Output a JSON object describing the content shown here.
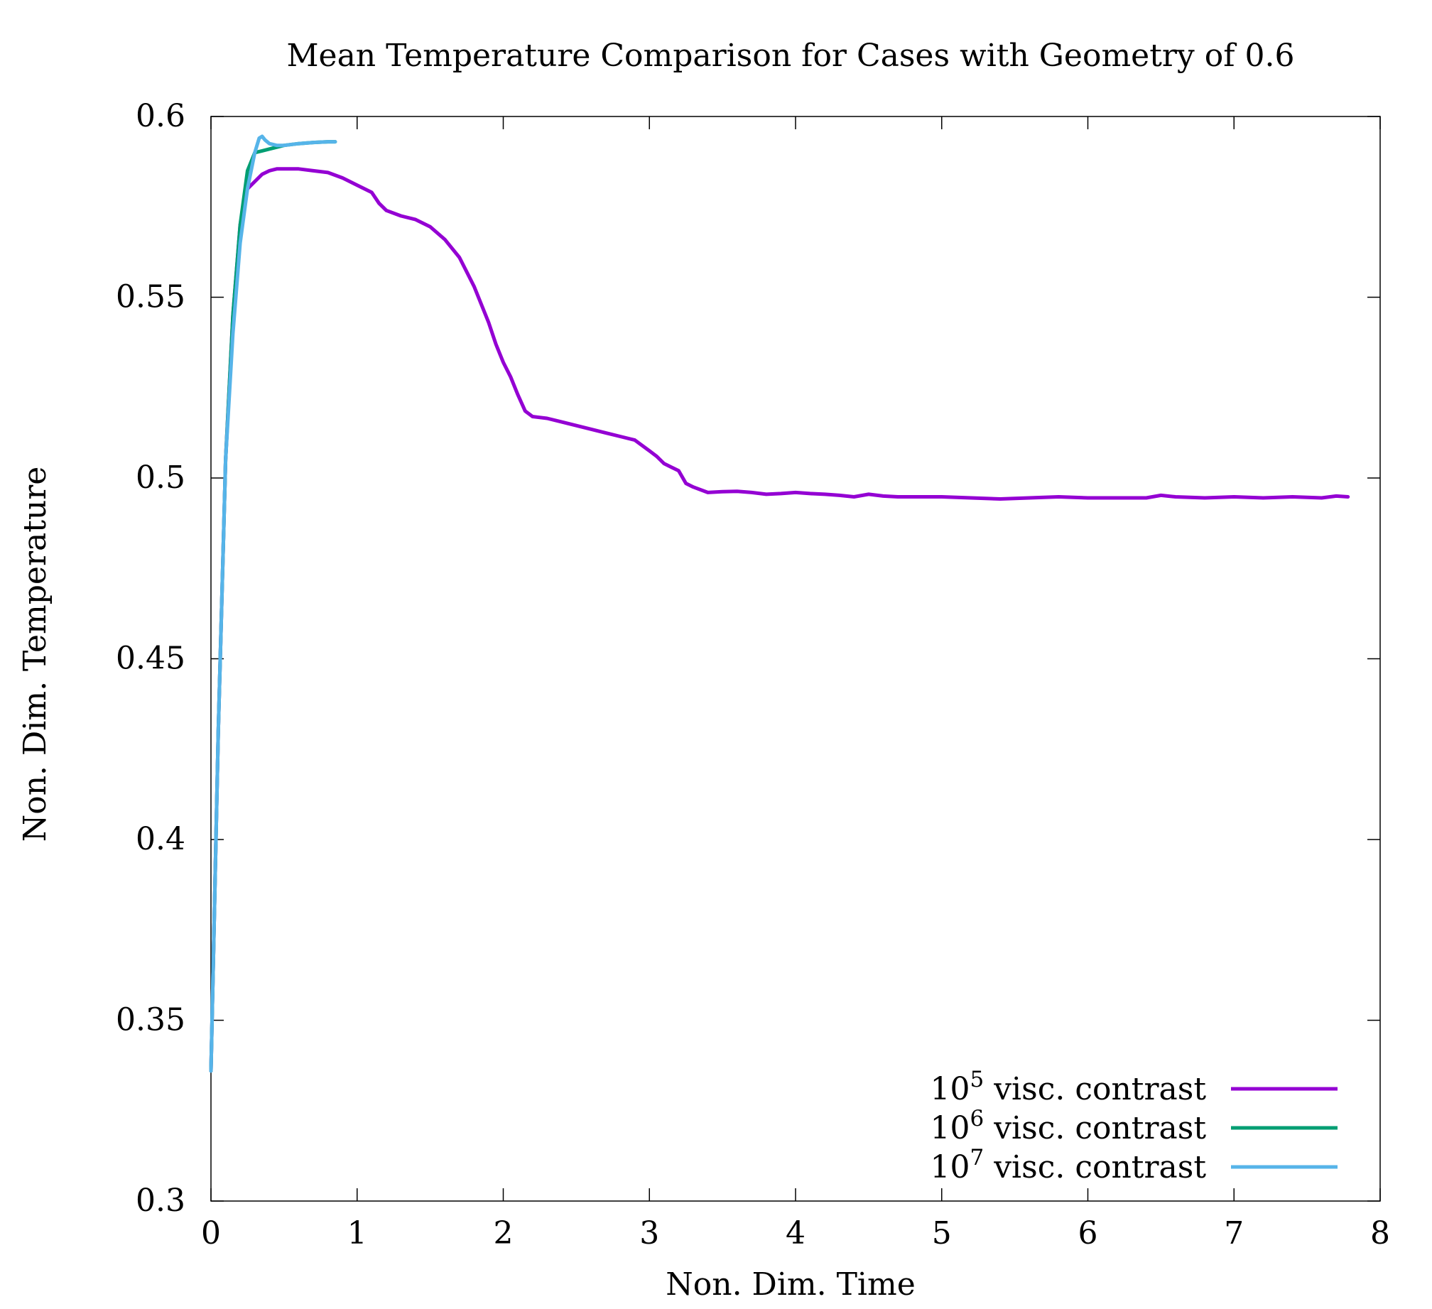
{
  "chart_data": {
    "type": "line",
    "title": "Mean Temperature Comparison for Cases with Geometry of 0.6",
    "xlabel": "Non. Dim. Time",
    "ylabel": "Non. Dim. Temperature",
    "xlim": [
      0,
      8
    ],
    "ylim": [
      0.3,
      0.6
    ],
    "xticks": [
      0,
      1,
      2,
      3,
      4,
      5,
      6,
      7,
      8
    ],
    "xtick_labels": [
      "0",
      "1",
      "2",
      "3",
      "4",
      "5",
      "6",
      "7",
      "8"
    ],
    "yticks": [
      0.3,
      0.35,
      0.4,
      0.45,
      0.5,
      0.55,
      0.6
    ],
    "ytick_labels": [
      "0.3",
      "0.35",
      "0.4",
      "0.45",
      "0.5",
      "0.55",
      "0.6"
    ],
    "grid": false,
    "legend_position": "bottom-right",
    "series": [
      {
        "name": "visc. contrast",
        "legend_base": "10",
        "legend_exp": "5",
        "color": "#9400D3",
        "x": [
          0,
          0.05,
          0.1,
          0.15,
          0.2,
          0.25,
          0.3,
          0.35,
          0.4,
          0.45,
          0.5,
          0.6,
          0.7,
          0.8,
          0.9,
          1.0,
          1.1,
          1.15,
          1.2,
          1.3,
          1.4,
          1.5,
          1.6,
          1.7,
          1.8,
          1.9,
          1.95,
          2.0,
          2.05,
          2.1,
          2.15,
          2.2,
          2.3,
          2.4,
          2.5,
          2.6,
          2.7,
          2.8,
          2.9,
          3.0,
          3.05,
          3.1,
          3.15,
          3.2,
          3.25,
          3.3,
          3.4,
          3.5,
          3.6,
          3.7,
          3.8,
          3.9,
          4.0,
          4.1,
          4.2,
          4.3,
          4.4,
          4.5,
          4.6,
          4.7,
          4.8,
          4.9,
          5.0,
          5.2,
          5.4,
          5.6,
          5.8,
          6.0,
          6.2,
          6.4,
          6.5,
          6.6,
          6.8,
          7.0,
          7.2,
          7.4,
          7.6,
          7.7,
          7.78
        ],
        "y": [
          0.336,
          0.43,
          0.505,
          0.545,
          0.57,
          0.58,
          0.582,
          0.584,
          0.585,
          0.5855,
          0.5855,
          0.5855,
          0.585,
          0.5845,
          0.583,
          0.581,
          0.579,
          0.576,
          0.574,
          0.5725,
          0.5715,
          0.5695,
          0.566,
          0.561,
          0.553,
          0.543,
          0.537,
          0.532,
          0.528,
          0.523,
          0.5185,
          0.517,
          0.5165,
          0.5155,
          0.5145,
          0.5135,
          0.5125,
          0.5115,
          0.5105,
          0.5075,
          0.506,
          0.504,
          0.503,
          0.502,
          0.4985,
          0.4975,
          0.496,
          0.4962,
          0.4963,
          0.496,
          0.4955,
          0.4957,
          0.496,
          0.4957,
          0.4955,
          0.4952,
          0.4948,
          0.4955,
          0.495,
          0.4948,
          0.4948,
          0.4948,
          0.4948,
          0.4945,
          0.4942,
          0.4945,
          0.4948,
          0.4945,
          0.4945,
          0.4945,
          0.4952,
          0.4948,
          0.4945,
          0.4948,
          0.4945,
          0.4948,
          0.4945,
          0.495,
          0.4948
        ]
      },
      {
        "name": "visc. contrast",
        "legend_base": "10",
        "legend_exp": "6",
        "color": "#009E73",
        "x": [
          0,
          0.05,
          0.1,
          0.15,
          0.2,
          0.25,
          0.3,
          0.35,
          0.4,
          0.5,
          0.6,
          0.7,
          0.8,
          0.85
        ],
        "y": [
          0.336,
          0.43,
          0.505,
          0.545,
          0.57,
          0.585,
          0.59,
          0.5905,
          0.591,
          0.592,
          0.5925,
          0.5928,
          0.593,
          0.593
        ]
      },
      {
        "name": "visc. contrast",
        "legend_base": "10",
        "legend_exp": "7",
        "color": "#56B4E9",
        "x": [
          0,
          0.05,
          0.1,
          0.15,
          0.2,
          0.25,
          0.3,
          0.33,
          0.35,
          0.37,
          0.4,
          0.45,
          0.5,
          0.6,
          0.7,
          0.8,
          0.85
        ],
        "y": [
          0.336,
          0.43,
          0.505,
          0.54,
          0.565,
          0.58,
          0.59,
          0.594,
          0.5945,
          0.5935,
          0.5925,
          0.592,
          0.592,
          0.5925,
          0.5928,
          0.593,
          0.593
        ]
      }
    ]
  }
}
